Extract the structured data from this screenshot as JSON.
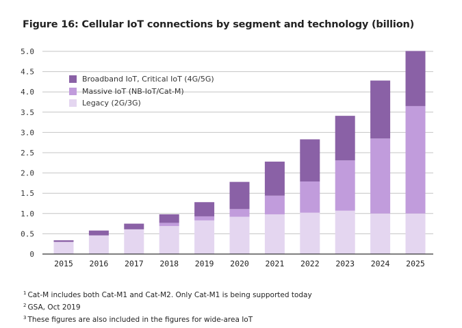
{
  "title": "Figure 16: Cellular IoT connections by segment and technology (billion)",
  "colors": {
    "broadband": "#8a61a6",
    "massive": "#c19cdc",
    "legacy": "#e4d6f0",
    "grid": "#c4c4c4",
    "axis": "#333333"
  },
  "chart_data": {
    "type": "bar",
    "stacked": true,
    "title": "Figure 16: Cellular IoT connections by segment and technology (billion)",
    "xlabel": "",
    "ylabel": "",
    "ylim": [
      0,
      5.0
    ],
    "yticks": [
      0,
      0.5,
      1.0,
      1.5,
      2.0,
      2.5,
      3.0,
      3.5,
      4.0,
      4.5,
      5.0
    ],
    "ytick_labels": [
      "0",
      "0.5",
      "1.0",
      "1.5",
      "2.0",
      "2.5",
      "3.0",
      "3.5",
      "4.0",
      "4.5",
      "5.0"
    ],
    "grid": true,
    "legend_position": "top-left",
    "categories": [
      "2015",
      "2016",
      "2017",
      "2018",
      "2019",
      "2020",
      "2021",
      "2022",
      "2023",
      "2024",
      "2025"
    ],
    "series": [
      {
        "name": "Legacy (2G/3G)",
        "key": "legacy",
        "values": [
          0.3,
          0.46,
          0.61,
          0.69,
          0.83,
          0.92,
          0.98,
          1.02,
          1.07,
          1.0,
          1.0
        ]
      },
      {
        "name": "Massive IoT (NB-IoT/Cat-M)",
        "key": "massive",
        "values": [
          0.0,
          0.0,
          0.0,
          0.08,
          0.1,
          0.19,
          0.46,
          0.77,
          1.24,
          1.85,
          2.65
        ]
      },
      {
        "name": "Broadband IoT, Critical IoT (4G/5G)",
        "key": "broadband",
        "values": [
          0.04,
          0.12,
          0.14,
          0.21,
          0.35,
          0.67,
          0.84,
          1.04,
          1.1,
          1.43,
          1.36
        ]
      }
    ]
  },
  "legend": [
    {
      "label": "Broadband IoT, Critical IoT (4G/5G)",
      "key": "broadband"
    },
    {
      "label": "Massive IoT (NB-IoT/Cat-M)",
      "key": "massive"
    },
    {
      "label": "Legacy (2G/3G)",
      "key": "legacy"
    }
  ],
  "footnotes": [
    {
      "mark": "1",
      "text": "Cat-M includes both Cat-M1 and Cat-M2. Only Cat-M1 is being supported today"
    },
    {
      "mark": "2",
      "text": "GSA, Oct 2019"
    },
    {
      "mark": "3",
      "text": "These figures are also included in the figures for wide-area IoT"
    }
  ]
}
